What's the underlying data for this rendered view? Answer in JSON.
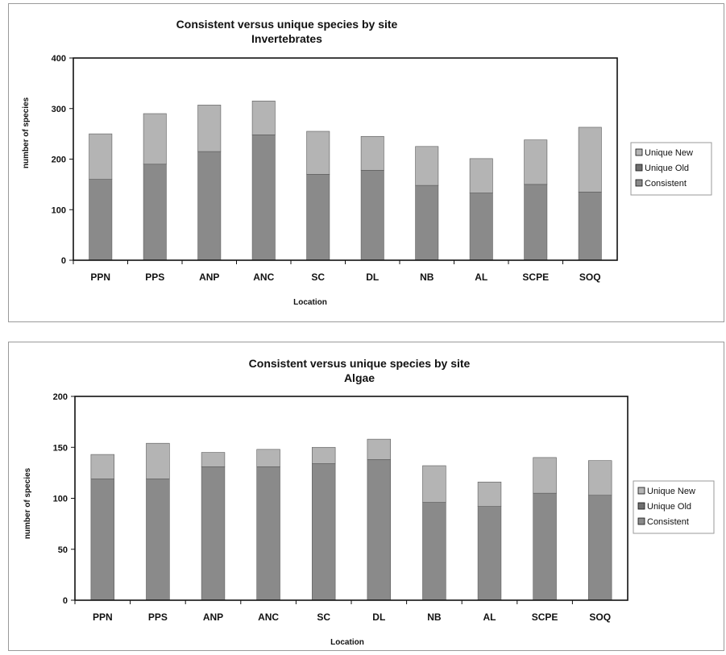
{
  "colors": {
    "consistent": "#8a8a8a",
    "unique_old": "#6f6f6f",
    "unique_new": "#b4b4b4",
    "plot_bg": "#ffffff",
    "frame": "#111111"
  },
  "chart_data": [
    {
      "type": "bar",
      "stacked": true,
      "title": "Consistent versus unique species by site",
      "subtitle": "Invertebrates",
      "xlabel": "Location",
      "ylabel": "number of species",
      "ylim": [
        0,
        400
      ],
      "yticks": [
        0,
        100,
        200,
        300,
        400
      ],
      "grid": false,
      "legend_position": "right",
      "categories": [
        "PPN",
        "PPS",
        "ANP",
        "ANC",
        "SC",
        "DL",
        "NB",
        "AL",
        "SCPE",
        "SOQ"
      ],
      "series": [
        {
          "name": "Consistent",
          "color_key": "consistent",
          "values": [
            160,
            190,
            215,
            248,
            170,
            178,
            148,
            133,
            150,
            135
          ]
        },
        {
          "name": "Unique Old",
          "color_key": "unique_old",
          "values": [
            0,
            0,
            0,
            0,
            0,
            0,
            0,
            0,
            0,
            0
          ]
        },
        {
          "name": "Unique New",
          "color_key": "unique_new",
          "values": [
            90,
            100,
            92,
            67,
            85,
            67,
            77,
            68,
            88,
            128
          ]
        }
      ],
      "legend_order": [
        "Unique New",
        "Unique Old",
        "Consistent"
      ]
    },
    {
      "type": "bar",
      "stacked": true,
      "title": "Consistent versus unique species by site",
      "subtitle": "Algae",
      "xlabel": "Location",
      "ylabel": "number of species",
      "ylim": [
        0,
        200
      ],
      "yticks": [
        0,
        50,
        100,
        150,
        200
      ],
      "grid": false,
      "legend_position": "right",
      "categories": [
        "PPN",
        "PPS",
        "ANP",
        "ANC",
        "SC",
        "DL",
        "NB",
        "AL",
        "SCPE",
        "SOQ"
      ],
      "series": [
        {
          "name": "Consistent",
          "color_key": "consistent",
          "values": [
            119,
            119,
            131,
            131,
            134,
            138,
            96,
            92,
            105,
            103
          ]
        },
        {
          "name": "Unique Old",
          "color_key": "unique_old",
          "values": [
            0,
            0,
            0,
            0,
            0,
            0,
            0,
            0,
            0,
            0
          ]
        },
        {
          "name": "Unique New",
          "color_key": "unique_new",
          "values": [
            24,
            35,
            14,
            17,
            16,
            20,
            36,
            24,
            35,
            34
          ]
        }
      ],
      "legend_order": [
        "Unique New",
        "Unique Old",
        "Consistent"
      ]
    }
  ]
}
